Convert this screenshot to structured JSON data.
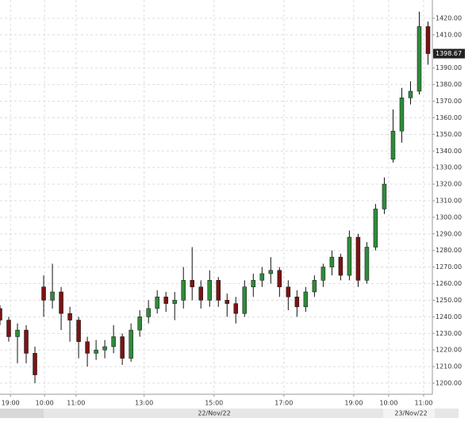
{
  "chart_data": {
    "type": "candlestick",
    "open": [
      1245,
      1238,
      1228,
      1232,
      1218,
      1258,
      1250,
      1255,
      1242,
      1238,
      1225,
      1218,
      1220,
      1222,
      1228,
      1215,
      1232,
      1240,
      1245,
      1252,
      1248,
      1250,
      1262,
      1258,
      1250,
      1262,
      1250,
      1248,
      1242,
      1258,
      1262,
      1266,
      1268,
      1258,
      1252,
      1246,
      1255,
      1262,
      1270,
      1276,
      1265,
      1288,
      1262,
      1282,
      1305,
      1335,
      1352,
      1372,
      1376,
      1415
    ],
    "high": [
      1247,
      1240,
      1236,
      1235,
      1222,
      1265,
      1272,
      1258,
      1246,
      1240,
      1228,
      1226,
      1226,
      1235,
      1230,
      1236,
      1244,
      1250,
      1256,
      1255,
      1255,
      1270,
      1282,
      1262,
      1268,
      1264,
      1254,
      1252,
      1262,
      1266,
      1270,
      1276,
      1270,
      1262,
      1256,
      1258,
      1265,
      1272,
      1280,
      1278,
      1292,
      1290,
      1285,
      1308,
      1324,
      1365,
      1378,
      1382,
      1424,
      1418
    ],
    "low": [
      1235,
      1225,
      1212,
      1212,
      1200,
      1240,
      1245,
      1232,
      1225,
      1215,
      1210,
      1214,
      1215,
      1218,
      1211,
      1213,
      1228,
      1236,
      1242,
      1243,
      1238,
      1245,
      1250,
      1245,
      1246,
      1246,
      1240,
      1236,
      1240,
      1252,
      1258,
      1260,
      1252,
      1244,
      1240,
      1243,
      1252,
      1258,
      1265,
      1262,
      1262,
      1258,
      1260,
      1280,
      1302,
      1333,
      1345,
      1368,
      1374,
      1392
    ],
    "close": [
      1238,
      1228,
      1232,
      1218,
      1205,
      1250,
      1255,
      1242,
      1238,
      1225,
      1218,
      1220,
      1222,
      1228,
      1215,
      1232,
      1240,
      1245,
      1252,
      1248,
      1250,
      1262,
      1258,
      1250,
      1262,
      1250,
      1248,
      1242,
      1258,
      1262,
      1266,
      1268,
      1258,
      1252,
      1246,
      1255,
      1262,
      1270,
      1276,
      1265,
      1288,
      1262,
      1282,
      1305,
      1320,
      1352,
      1372,
      1376,
      1415,
      1398.67
    ],
    "up_color": "#2f8a3b",
    "down_color": "#7a1414",
    "ylim": [
      1193.3,
      1431
    ],
    "yticks": [
      {
        "value": 1200,
        "label": "1200.00"
      },
      {
        "value": 1210,
        "label": "1210.00"
      },
      {
        "value": 1220,
        "label": "1220.00"
      },
      {
        "value": 1230,
        "label": "1230.00"
      },
      {
        "value": 1240,
        "label": "1240.00"
      },
      {
        "value": 1250,
        "label": "1250.00"
      },
      {
        "value": 1260,
        "label": "1260.00"
      },
      {
        "value": 1270,
        "label": "1270.00"
      },
      {
        "value": 1280,
        "label": "1280.00"
      },
      {
        "value": 1290,
        "label": "1290.00"
      },
      {
        "value": 1300,
        "label": "1300.00"
      },
      {
        "value": 1310,
        "label": "1310.00"
      },
      {
        "value": 1320,
        "label": "1320.00"
      },
      {
        "value": 1330,
        "label": "1330.00"
      },
      {
        "value": 1340,
        "label": "1340.00"
      },
      {
        "value": 1350,
        "label": "1350.00"
      },
      {
        "value": 1360,
        "label": "1360.00"
      },
      {
        "value": 1370,
        "label": "1370.00"
      },
      {
        "value": 1380,
        "label": "1380.00"
      },
      {
        "value": 1390,
        "label": "1390.00"
      },
      {
        "value": 1400,
        "label": "1400.00"
      },
      {
        "value": 1410,
        "label": "1410.00"
      },
      {
        "value": 1420,
        "label": "1420.00"
      }
    ],
    "xlim": [
      0,
      49.5
    ],
    "xticks": [
      {
        "value": 1.2,
        "label": "19:00"
      },
      {
        "value": 5.1,
        "label": "10:00"
      },
      {
        "value": 8.7,
        "label": "11:00"
      },
      {
        "value": 16.5,
        "label": "13:00"
      },
      {
        "value": 24.5,
        "label": "15:00"
      },
      {
        "value": 32.5,
        "label": "17:00"
      },
      {
        "value": 40.5,
        "label": "19:00"
      },
      {
        "value": 44.5,
        "label": "10:00"
      },
      {
        "value": 48.5,
        "label": "11:00"
      }
    ],
    "date_labels": [
      "22/Nov/22",
      "23/Nov/22"
    ],
    "grid": true
  }
}
